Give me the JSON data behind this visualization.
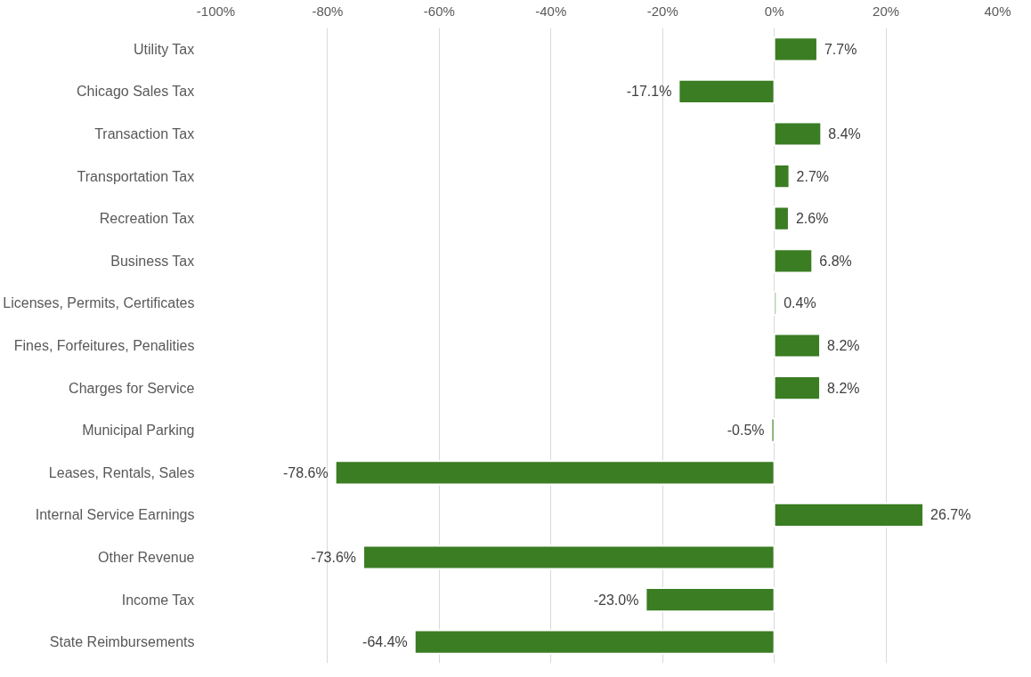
{
  "chart_data": {
    "type": "bar",
    "orientation": "horizontal",
    "categories": [
      "Utility Tax",
      "Chicago Sales Tax",
      "Transaction Tax",
      "Transportation Tax",
      "Recreation Tax",
      "Business Tax",
      "Licenses, Permits, Certificates",
      "Fines, Forfeitures, Penalities",
      "Charges for Service",
      "Municipal Parking",
      "Leases, Rentals, Sales",
      "Internal Service Earnings",
      "Other Revenue",
      "Income Tax",
      "State Reimbursements"
    ],
    "values": [
      7.7,
      -17.1,
      8.4,
      2.7,
      2.6,
      6.8,
      0.4,
      8.2,
      8.2,
      -0.5,
      -78.6,
      26.7,
      -73.6,
      -23.0,
      -64.4
    ],
    "value_labels": [
      "7.7%",
      "-17.1%",
      "8.4%",
      "2.7%",
      "2.6%",
      "6.8%",
      "0.4%",
      "8.2%",
      "8.2%",
      "-0.5%",
      "-78.6%",
      "26.7%",
      "-73.6%",
      "-23.0%",
      "-64.4%"
    ],
    "color": "#3a7d22",
    "xlim": [
      -100,
      40
    ],
    "xticks": [
      {
        "value": -100,
        "label": "-100%"
      },
      {
        "value": -80,
        "label": "-80%"
      },
      {
        "value": -60,
        "label": "-60%"
      },
      {
        "value": -40,
        "label": "-40%"
      },
      {
        "value": -20,
        "label": "-20%"
      },
      {
        "value": 0,
        "label": "0%"
      },
      {
        "value": 20,
        "label": "20%"
      },
      {
        "value": 40,
        "label": "40%"
      }
    ],
    "grid": "x"
  }
}
